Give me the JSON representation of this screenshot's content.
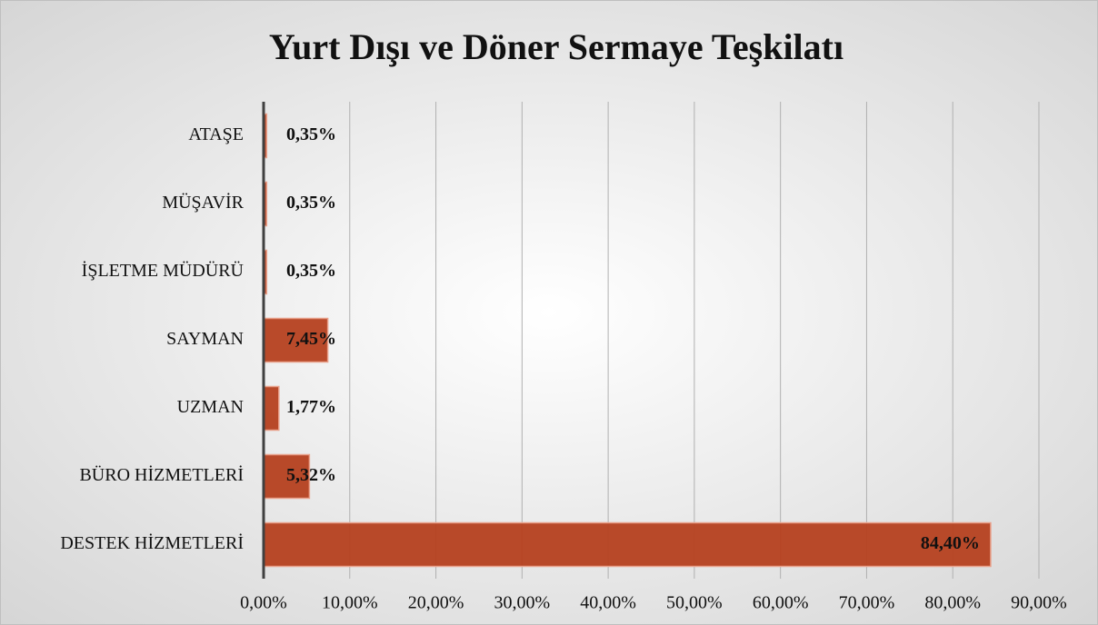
{
  "chart_data": {
    "type": "barh",
    "title": "Yurt Dışı ve Döner Sermaye Teşkilatı",
    "categories": [
      "ATAŞE",
      "MÜŞAVİR",
      "İŞLETME MÜDÜRÜ",
      "SAYMAN",
      "UZMAN",
      "BÜRO HİZMETLERİ",
      "DESTEK HİZMETLERİ"
    ],
    "values": [
      0.35,
      0.35,
      0.35,
      7.45,
      1.77,
      5.32,
      84.4
    ],
    "value_labels": [
      "0,35%",
      "0,35%",
      "0,35%",
      "7,45%",
      "1,77%",
      "5,32%",
      "84,40%"
    ],
    "color": "#b5401f",
    "xlim": [
      0,
      90
    ],
    "xticks": [
      {
        "value": 0,
        "label": "0,00%"
      },
      {
        "value": 10,
        "label": "10,00%"
      },
      {
        "value": 20,
        "label": "20,00%"
      },
      {
        "value": 30,
        "label": "30,00%"
      },
      {
        "value": 40,
        "label": "40,00%"
      },
      {
        "value": 50,
        "label": "50,00%"
      },
      {
        "value": 60,
        "label": "60,00%"
      },
      {
        "value": 70,
        "label": "70,00%"
      },
      {
        "value": 80,
        "label": "80,00%"
      },
      {
        "value": 90,
        "label": "90,00%"
      }
    ],
    "grid": true
  }
}
